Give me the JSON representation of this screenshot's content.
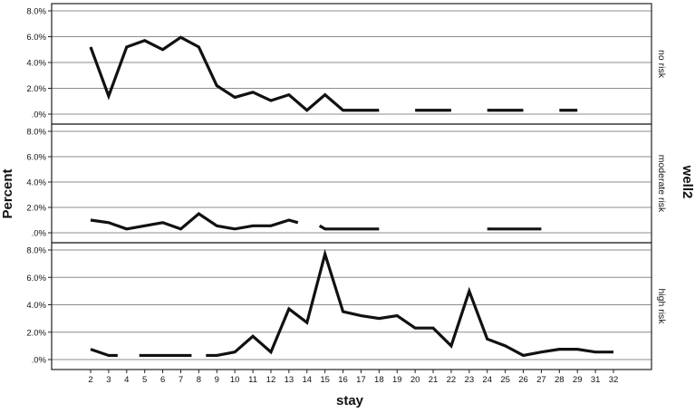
{
  "chart_data": {
    "type": "line",
    "xlabel": "stay",
    "ylabel": "Percent",
    "facet_title": "well2",
    "x_categories": [
      2,
      3,
      4,
      5,
      6,
      7,
      8,
      9,
      10,
      11,
      12,
      13,
      14,
      15,
      16,
      17,
      18,
      19,
      20,
      21,
      22,
      23,
      24,
      25,
      26,
      27,
      28,
      29,
      31,
      32
    ],
    "y_ticks": [
      ".0%",
      "2.0%",
      "4.0%",
      "6.0%",
      "8.0%"
    ],
    "ylim": [
      0,
      8
    ],
    "grid": true,
    "panels": [
      {
        "label": "no risk",
        "segments": [
          [
            [
              2,
              5.2
            ],
            [
              3,
              1.4
            ],
            [
              4,
              5.2
            ],
            [
              5,
              5.7
            ],
            [
              6,
              5.0
            ],
            [
              7,
              5.95
            ],
            [
              8,
              5.2
            ],
            [
              9,
              2.2
            ],
            [
              10,
              1.3
            ],
            [
              11,
              1.7
            ],
            [
              12,
              1.05
            ],
            [
              13,
              1.5
            ],
            [
              14,
              0.3
            ],
            [
              15,
              1.5
            ],
            [
              16,
              0.3
            ],
            [
              17,
              0.3
            ],
            [
              18,
              0.3
            ]
          ],
          [
            [
              20,
              0.3
            ],
            [
              21,
              0.3
            ],
            [
              22,
              0.3
            ]
          ],
          [
            [
              24,
              0.3
            ],
            [
              25,
              0.3
            ],
            [
              26,
              0.3
            ]
          ],
          [
            [
              28,
              0.3
            ],
            [
              29,
              0.3
            ]
          ]
        ]
      },
      {
        "label": "moderate risk",
        "segments": [
          [
            [
              2,
              1.0
            ],
            [
              3,
              0.8
            ],
            [
              4,
              0.3
            ],
            [
              5,
              0.55
            ],
            [
              6,
              0.8
            ],
            [
              7,
              0.3
            ],
            [
              8,
              1.5
            ],
            [
              9,
              0.55
            ],
            [
              10,
              0.3
            ],
            [
              11,
              0.55
            ],
            [
              12,
              0.55
            ],
            [
              13,
              1.0
            ],
            [
              13.5,
              0.8
            ]
          ],
          [
            [
              14.7,
              0.55
            ],
            [
              15,
              0.3
            ],
            [
              16,
              0.3
            ],
            [
              17,
              0.3
            ],
            [
              18,
              0.3
            ]
          ],
          [
            [
              24,
              0.3
            ],
            [
              25,
              0.3
            ],
            [
              26,
              0.3
            ],
            [
              27,
              0.3
            ]
          ]
        ]
      },
      {
        "label": "high risk",
        "segments": [
          [
            [
              2,
              0.75
            ],
            [
              3,
              0.3
            ],
            [
              3.5,
              0.3
            ]
          ],
          [
            [
              4.7,
              0.3
            ],
            [
              5,
              0.3
            ],
            [
              6,
              0.3
            ],
            [
              7,
              0.3
            ],
            [
              7.6,
              0.3
            ]
          ],
          [
            [
              8.4,
              0.3
            ],
            [
              9,
              0.3
            ],
            [
              10,
              0.55
            ],
            [
              11,
              1.7
            ],
            [
              12,
              0.55
            ],
            [
              13,
              3.7
            ],
            [
              14,
              2.7
            ],
            [
              15,
              7.7
            ],
            [
              16,
              3.5
            ],
            [
              17,
              3.2
            ],
            [
              18,
              3.0
            ],
            [
              19,
              3.2
            ],
            [
              20,
              2.3
            ],
            [
              21,
              2.3
            ],
            [
              22,
              1.0
            ],
            [
              23,
              5.0
            ],
            [
              24,
              1.5
            ],
            [
              25,
              1.0
            ],
            [
              26,
              0.3
            ],
            [
              27,
              0.55
            ],
            [
              28,
              0.75
            ],
            [
              29,
              0.75
            ],
            [
              31,
              0.55
            ],
            [
              32,
              0.55
            ]
          ]
        ]
      }
    ]
  }
}
